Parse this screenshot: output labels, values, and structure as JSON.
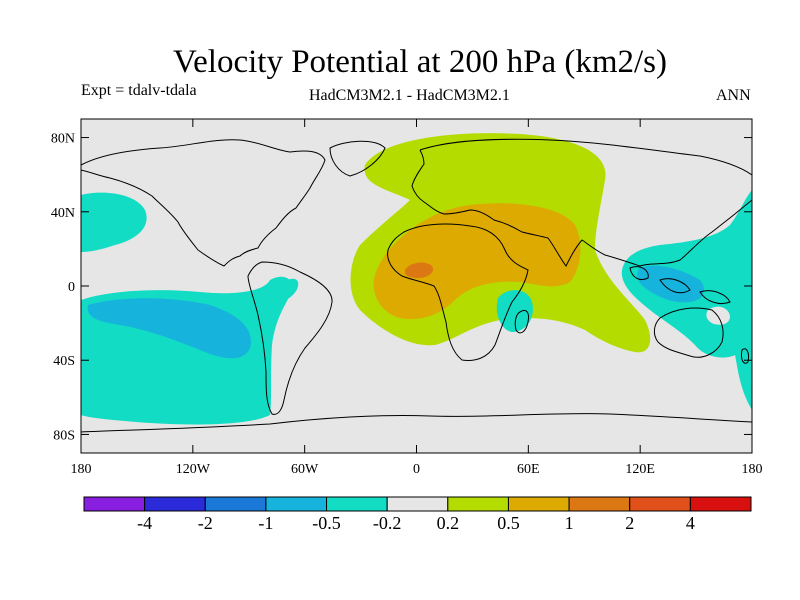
{
  "map": {
    "title": "Velocity Potential at 200 hPa (km2/s)",
    "expt_label": "Expt = tdalv-tdala",
    "models_label": "HadCM3M2.1 - HadCM3M2.1",
    "season_label": "ANN",
    "projection": "cylindrical equidistant",
    "lon_range": [
      -180,
      180
    ],
    "lat_range": [
      -90,
      90
    ],
    "lat_ticks": [
      {
        "value": 80,
        "label": "80N"
      },
      {
        "value": 40,
        "label": "40N"
      },
      {
        "value": 0,
        "label": "0"
      },
      {
        "value": -40,
        "label": "40S"
      },
      {
        "value": -80,
        "label": "80S"
      }
    ],
    "lon_ticks": [
      {
        "value": -180,
        "label": "180"
      },
      {
        "value": -120,
        "label": "120W"
      },
      {
        "value": -60,
        "label": "60W"
      },
      {
        "value": 0,
        "label": "0"
      },
      {
        "value": 60,
        "label": "60E"
      },
      {
        "value": 120,
        "label": "120E"
      },
      {
        "value": 180,
        "label": "180"
      }
    ]
  },
  "colorbar": {
    "colors": [
      "#8a1ee0",
      "#2a2ad8",
      "#1a78d8",
      "#16b4dc",
      "#12dcc4",
      "#e6e6e6",
      "#b4dc00",
      "#dcaa00",
      "#dc7814",
      "#e0501a",
      "#d81010"
    ],
    "labels": [
      "-4",
      "-2",
      "-1",
      "-0.5",
      "-0.2",
      "0.2",
      "0.5",
      "1",
      "2",
      "4"
    ]
  }
}
